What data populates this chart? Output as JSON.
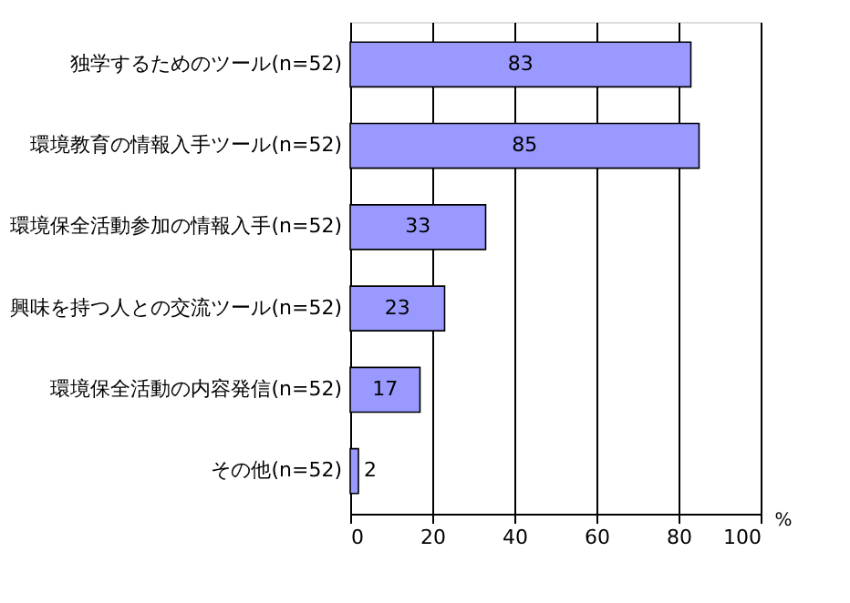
{
  "chart_data": {
    "type": "bar",
    "orientation": "horizontal",
    "categories": [
      "独学するためのツール(n=52)",
      "環境教育の情報入手ツール(n=52)",
      "環境保全活動参加の情報入手(n=52)",
      "興味を持つ人との交流ツール(n=52)",
      "環境保全活動の内容発信(n=52)",
      "その他(n=52)"
    ],
    "values": [
      83,
      85,
      33,
      23,
      17,
      2
    ],
    "color": "#9999ff",
    "xlabel": "%",
    "xlim": [
      0,
      100
    ],
    "xticks": [
      0,
      20,
      40,
      60,
      80,
      100
    ],
    "grid": "x",
    "data_labels": true
  }
}
